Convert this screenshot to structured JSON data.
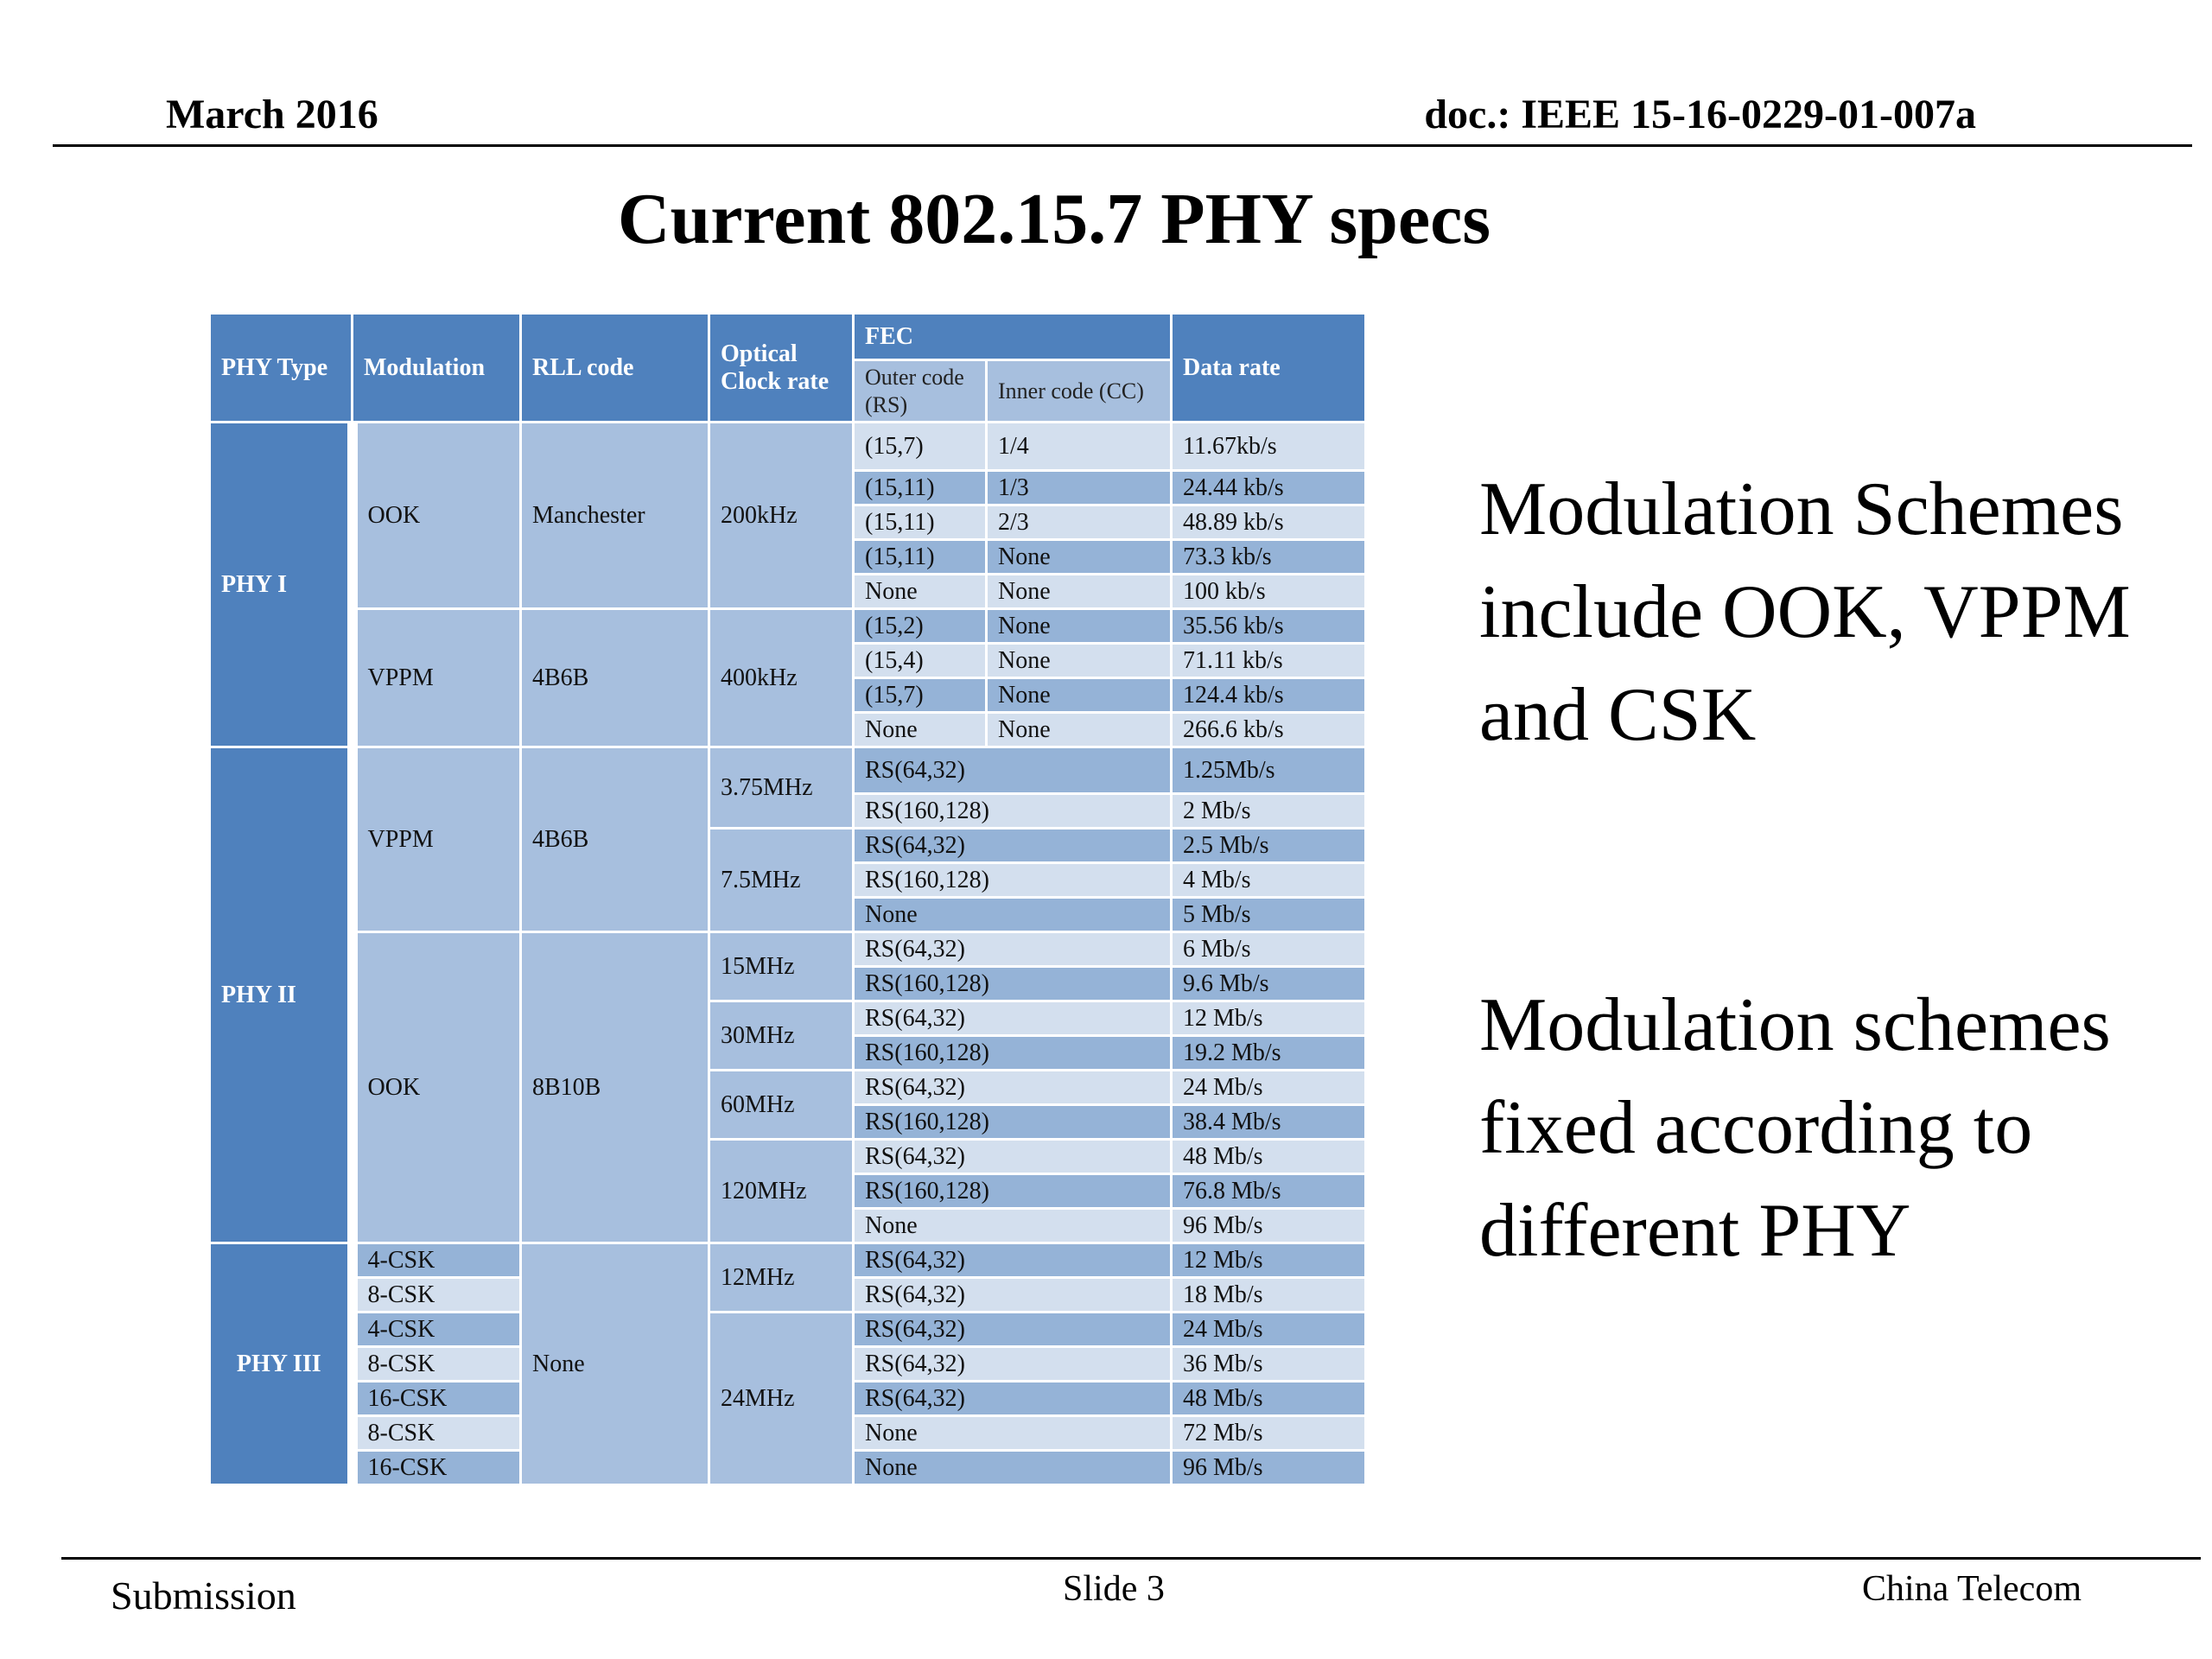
{
  "header": {
    "date": "March 2016",
    "doc": "doc.: IEEE 15-16-0229-01-007a"
  },
  "title": "Current 802.15.7 PHY specs",
  "table": {
    "headers": {
      "phy_type": "PHY Type",
      "modulation": "Modulation",
      "rll_code": "RLL code",
      "clock_rate": "Optical Clock rate",
      "fec": "FEC",
      "outer_code": "Outer code (RS)",
      "inner_code": "Inner code (CC)",
      "data_rate": "Data rate"
    },
    "phy1": {
      "name": "PHY I",
      "groups": [
        {
          "modulation": "OOK",
          "rll": "Manchester",
          "clock": "200kHz",
          "rows": [
            {
              "outer": "(15,7)",
              "inner": "1/4",
              "rate": "11.67kb/s"
            },
            {
              "outer": "(15,11)",
              "inner": "1/3",
              "rate": "24.44 kb/s"
            },
            {
              "outer": "(15,11)",
              "inner": "2/3",
              "rate": "48.89 kb/s"
            },
            {
              "outer": "(15,11)",
              "inner": "None",
              "rate": "73.3 kb/s"
            },
            {
              "outer": "None",
              "inner": "None",
              "rate": "100 kb/s"
            }
          ]
        },
        {
          "modulation": "VPPM",
          "rll": "4B6B",
          "clock": "400kHz",
          "rows": [
            {
              "outer": "(15,2)",
              "inner": "None",
              "rate": "35.56 kb/s"
            },
            {
              "outer": "(15,4)",
              "inner": "None",
              "rate": "71.11 kb/s"
            },
            {
              "outer": "(15,7)",
              "inner": "None",
              "rate": "124.4 kb/s"
            },
            {
              "outer": "None",
              "inner": "None",
              "rate": "266.6 kb/s"
            }
          ]
        }
      ]
    },
    "phy2": {
      "name": "PHY II",
      "groups": [
        {
          "modulation": "VPPM",
          "rll": "4B6B",
          "clocks": [
            {
              "clock": "3.75MHz",
              "rows": [
                {
                  "fec": "RS(64,32)",
                  "rate": "1.25Mb/s"
                },
                {
                  "fec": "RS(160,128)",
                  "rate": "2 Mb/s"
                }
              ]
            },
            {
              "clock": "7.5MHz",
              "rows": [
                {
                  "fec": "RS(64,32)",
                  "rate": "2.5 Mb/s"
                },
                {
                  "fec": "RS(160,128)",
                  "rate": "4 Mb/s"
                },
                {
                  "fec": "None",
                  "rate": "5 Mb/s"
                }
              ]
            }
          ]
        },
        {
          "modulation": "OOK",
          "rll": "8B10B",
          "clocks": [
            {
              "clock": "15MHz",
              "rows": [
                {
                  "fec": "RS(64,32)",
                  "rate": "6 Mb/s"
                },
                {
                  "fec": "RS(160,128)",
                  "rate": "9.6 Mb/s"
                }
              ]
            },
            {
              "clock": "30MHz",
              "rows": [
                {
                  "fec": "RS(64,32)",
                  "rate": "12 Mb/s"
                },
                {
                  "fec": "RS(160,128)",
                  "rate": "19.2 Mb/s"
                }
              ]
            },
            {
              "clock": "60MHz",
              "rows": [
                {
                  "fec": "RS(64,32)",
                  "rate": "24 Mb/s"
                },
                {
                  "fec": "RS(160,128)",
                  "rate": "38.4 Mb/s"
                }
              ]
            },
            {
              "clock": "120MHz",
              "rows": [
                {
                  "fec": "RS(64,32)",
                  "rate": "48 Mb/s"
                },
                {
                  "fec": "RS(160,128)",
                  "rate": "76.8 Mb/s"
                },
                {
                  "fec": "None",
                  "rate": "96 Mb/s"
                }
              ]
            }
          ]
        }
      ]
    },
    "phy3": {
      "name": "PHY III",
      "rll": "None",
      "rows": [
        {
          "modulation": "4-CSK",
          "fec": "RS(64,32)",
          "rate": "12 Mb/s"
        },
        {
          "modulation": "8-CSK",
          "fec": "RS(64,32)",
          "rate": "18 Mb/s"
        },
        {
          "modulation": "4-CSK",
          "fec": "RS(64,32)",
          "rate": "24 Mb/s"
        },
        {
          "modulation": "8-CSK",
          "fec": "RS(64,32)",
          "rate": "36 Mb/s"
        },
        {
          "modulation": "16-CSK",
          "fec": "RS(64,32)",
          "rate": "48 Mb/s"
        },
        {
          "modulation": "8-CSK",
          "fec": "None",
          "rate": "72 Mb/s"
        },
        {
          "modulation": "16-CSK",
          "fec": "None",
          "rate": "96 Mb/s"
        }
      ],
      "clocks": [
        "12MHz",
        "24MHz"
      ]
    }
  },
  "side_text": {
    "block1": "Modulation Schemes include OOK, VPPM and CSK",
    "block2": "Modulation schemes fixed according to different PHY"
  },
  "footer": {
    "left": "Submission",
    "center": "Slide 3",
    "right": "China Telecom"
  }
}
